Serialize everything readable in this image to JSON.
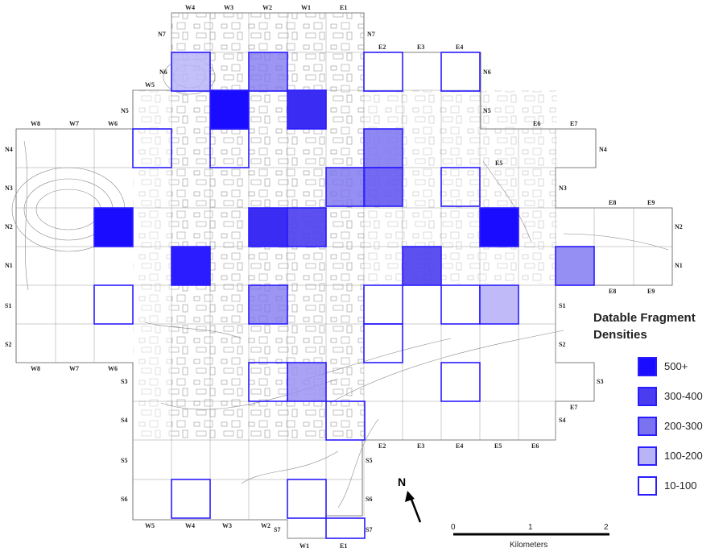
{
  "map": {
    "grid_labels": {
      "top": [
        "W4",
        "W3",
        "W2",
        "W1",
        "E1"
      ],
      "n7_row": [
        "N7",
        "N7"
      ],
      "e_n6": [
        "E2",
        "E3",
        "E4"
      ],
      "n6": [
        "N6",
        "N6"
      ],
      "n5": [
        "W5",
        "N5",
        "N5"
      ],
      "west_row": [
        "W8",
        "W7",
        "W6"
      ],
      "east_n4": [
        "E6",
        "E7",
        "N4"
      ],
      "n4": [
        "N4"
      ],
      "e5": [
        "E5"
      ],
      "n3": [
        "N3",
        "N3"
      ],
      "e89": [
        "E8",
        "E9"
      ],
      "n2": [
        "N2",
        "N2"
      ],
      "n1": [
        "N1",
        "N1"
      ],
      "e89_low": [
        "E8",
        "E9"
      ],
      "s1": [
        "S1",
        "S1"
      ],
      "s2": [
        "S2",
        "S2"
      ],
      "west_bottom": [
        "W8",
        "W7",
        "W6"
      ],
      "s3": [
        "S3",
        "S3"
      ],
      "e7": [
        "E7"
      ],
      "s4": [
        "S4",
        "S4"
      ],
      "e_bottom": [
        "E2",
        "E3",
        "E4",
        "E5",
        "E6"
      ],
      "s5": [
        "S5",
        "S5"
      ],
      "s6": [
        "S6",
        "S6"
      ],
      "s7": [
        "S7",
        "S7"
      ],
      "bottom_w": [
        "W5",
        "W4",
        "W3",
        "W2"
      ],
      "bottom_e": [
        "W1",
        "E1"
      ]
    },
    "north_label": "N",
    "scale": {
      "ticks": [
        "0",
        "1",
        "2"
      ],
      "unit": "Kilometers"
    }
  },
  "legend": {
    "title_line1": "Datable Fragment",
    "title_line2": "Densities",
    "items": [
      {
        "label": "500+",
        "color": "#1a0dff"
      },
      {
        "label": "300-400",
        "color": "#4a3df0"
      },
      {
        "label": "200-300",
        "color": "#7b72f0"
      },
      {
        "label": "100-200",
        "color": "#b9b4f7"
      },
      {
        "label": "10-100",
        "color": "#ffffff"
      }
    ]
  }
}
